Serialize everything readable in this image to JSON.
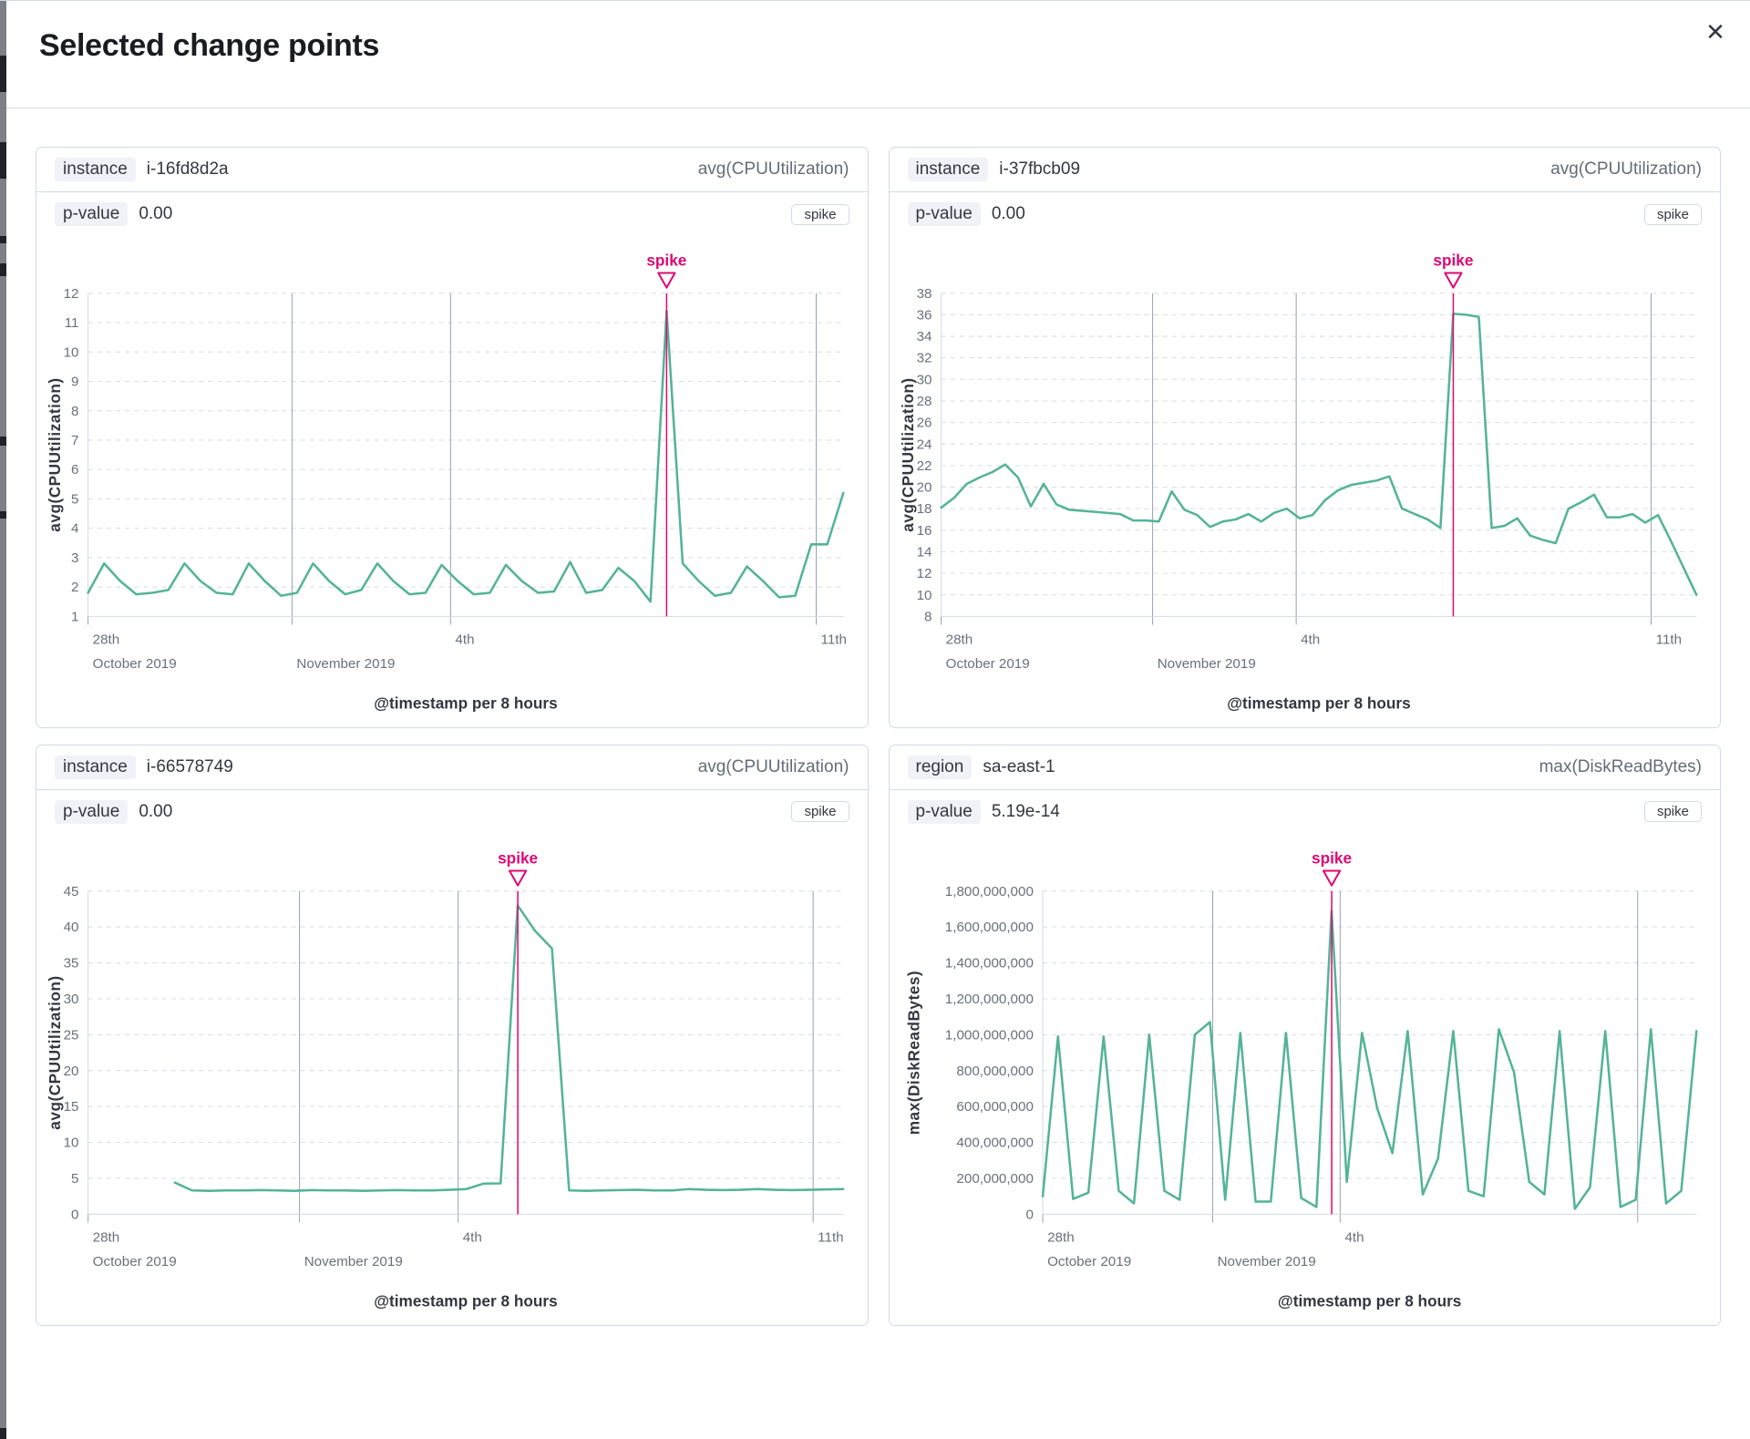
{
  "modal": {
    "title": "Selected change points",
    "close_glyph": "✕"
  },
  "colors": {
    "line": "#54b399",
    "accent": "#dd0a73",
    "panel_border": "#d3dae6",
    "grid": "#d8dce5",
    "tick_line": "#98a2b3",
    "axis_text": "#69707d",
    "axis_title": "#343741"
  },
  "chart_data": [
    {
      "type": "line",
      "key_label": "instance",
      "key_value": "i-16fd8d2a",
      "metric": "avg(CPUUtilization)",
      "p_label": "p-value",
      "p_value": "0.00",
      "change_type": "spike",
      "annotation": "spike",
      "title": "",
      "xlabel": "@timestamp per 8 hours",
      "ylabel": "avg(CPUUtilization)",
      "y": {
        "min": 1,
        "max": 12,
        "step": 1,
        "format": "plain"
      },
      "x_ticks": [
        {
          "top": "28th",
          "bottom": "October 2019",
          "frac": 0,
          "line": false
        },
        {
          "top": "",
          "bottom": "November 2019",
          "frac": 0.27,
          "line": true
        },
        {
          "top": "4th",
          "bottom": "",
          "frac": 0.48,
          "line": true
        },
        {
          "top": "11th",
          "bottom": "",
          "frac": 0.964,
          "line": true
        }
      ],
      "x_offset_frac": 0,
      "spike_frac": 0.766,
      "values": [
        1.8,
        2.8,
        2.2,
        1.75,
        1.8,
        1.9,
        2.8,
        2.2,
        1.8,
        1.75,
        2.8,
        2.2,
        1.7,
        1.8,
        2.8,
        2.2,
        1.75,
        1.9,
        2.8,
        2.2,
        1.75,
        1.8,
        2.75,
        2.2,
        1.75,
        1.8,
        2.75,
        2.2,
        1.8,
        1.85,
        2.85,
        1.8,
        1.9,
        2.65,
        2.2,
        1.5,
        11.4,
        2.8,
        2.2,
        1.7,
        1.8,
        2.7,
        2.2,
        1.65,
        1.7,
        3.45,
        3.45,
        5.2
      ]
    },
    {
      "type": "line",
      "key_label": "instance",
      "key_value": "i-37fbcb09",
      "metric": "avg(CPUUtilization)",
      "p_label": "p-value",
      "p_value": "0.00",
      "change_type": "spike",
      "annotation": "spike",
      "title": "",
      "xlabel": "@timestamp per 8 hours",
      "ylabel": "avg(CPUUtilization)",
      "y": {
        "min": 8,
        "max": 38,
        "step": 2,
        "format": "plain"
      },
      "x_ticks": [
        {
          "top": "28th",
          "bottom": "October 2019",
          "frac": 0,
          "line": false
        },
        {
          "top": "",
          "bottom": "November 2019",
          "frac": 0.28,
          "line": true
        },
        {
          "top": "4th",
          "bottom": "",
          "frac": 0.47,
          "line": true
        },
        {
          "top": "11th",
          "bottom": "",
          "frac": 0.94,
          "line": true
        }
      ],
      "x_offset_frac": 0,
      "spike_frac": 0.678,
      "values": [
        18.1,
        19.0,
        20.3,
        20.9,
        21.4,
        22.1,
        20.9,
        18.2,
        20.3,
        18.4,
        17.9,
        17.8,
        17.7,
        17.6,
        17.5,
        16.9,
        16.9,
        16.8,
        19.6,
        17.9,
        17.4,
        16.3,
        16.8,
        17.0,
        17.5,
        16.8,
        17.6,
        18.0,
        17.1,
        17.4,
        18.8,
        19.7,
        20.2,
        20.4,
        20.6,
        21.0,
        18.0,
        17.5,
        17.0,
        16.2,
        36.1,
        36.0,
        35.8,
        16.2,
        16.4,
        17.1,
        15.5,
        15.1,
        14.8,
        18.0,
        18.6,
        19.3,
        17.2,
        17.2,
        17.5,
        16.7,
        17.4,
        15.0,
        12.5,
        10.0
      ]
    },
    {
      "type": "line",
      "key_label": "instance",
      "key_value": "i-66578749",
      "metric": "avg(CPUUtilization)",
      "p_label": "p-value",
      "p_value": "0.00",
      "change_type": "spike",
      "annotation": "spike",
      "title": "",
      "xlabel": "@timestamp per 8 hours",
      "ylabel": "avg(CPUUtilization)",
      "y": {
        "min": 0,
        "max": 45,
        "step": 5,
        "format": "plain"
      },
      "x_ticks": [
        {
          "top": "28th",
          "bottom": "October 2019",
          "frac": 0,
          "line": false
        },
        {
          "top": "",
          "bottom": "November 2019",
          "frac": 0.28,
          "line": true
        },
        {
          "top": "4th",
          "bottom": "",
          "frac": 0.49,
          "line": true
        },
        {
          "top": "11th",
          "bottom": "",
          "frac": 0.96,
          "line": true
        }
      ],
      "x_offset_frac": 0.115,
      "spike_frac": 0.569,
      "values": [
        4.4,
        3.3,
        3.25,
        3.3,
        3.3,
        3.35,
        3.3,
        3.25,
        3.35,
        3.3,
        3.3,
        3.25,
        3.3,
        3.35,
        3.3,
        3.3,
        3.4,
        3.5,
        4.25,
        4.3,
        43,
        39.5,
        37,
        3.3,
        3.25,
        3.3,
        3.35,
        3.4,
        3.3,
        3.3,
        3.5,
        3.4,
        3.35,
        3.4,
        3.5,
        3.4,
        3.35,
        3.4,
        3.45,
        3.5
      ]
    },
    {
      "type": "line",
      "key_label": "region",
      "key_value": "sa-east-1",
      "metric": "max(DiskReadBytes)",
      "p_label": "p-value",
      "p_value": "5.19e-14",
      "change_type": "spike",
      "annotation": "spike",
      "title": "",
      "xlabel": "@timestamp per 8 hours",
      "ylabel": "max(DiskReadBytes)",
      "y": {
        "min": 0,
        "max": 1800000000,
        "step": 200000000,
        "format": "comma"
      },
      "x_ticks": [
        {
          "top": "28th",
          "bottom": "October 2019",
          "frac": 0,
          "line": false
        },
        {
          "top": "",
          "bottom": "November 2019",
          "frac": 0.26,
          "line": true
        },
        {
          "top": "4th",
          "bottom": "",
          "frac": 0.455,
          "line": true
        },
        {
          "top": "",
          "bottom": "",
          "frac": 0.91,
          "line": true
        }
      ],
      "x_offset_frac": 0,
      "spike_frac": 0.442,
      "values": [
        100000000,
        990000000,
        85000000,
        120000000,
        990000000,
        130000000,
        60000000,
        1000000000,
        130000000,
        80000000,
        1000000000,
        1070000000,
        80000000,
        1010000000,
        70000000,
        70000000,
        1010000000,
        90000000,
        40000000,
        1690000000,
        180000000,
        1010000000,
        590000000,
        340000000,
        1020000000,
        110000000,
        310000000,
        1020000000,
        130000000,
        100000000,
        1030000000,
        790000000,
        180000000,
        110000000,
        1020000000,
        30000000,
        150000000,
        1020000000,
        40000000,
        80000000,
        1030000000,
        60000000,
        130000000,
        1020000000
      ]
    }
  ]
}
